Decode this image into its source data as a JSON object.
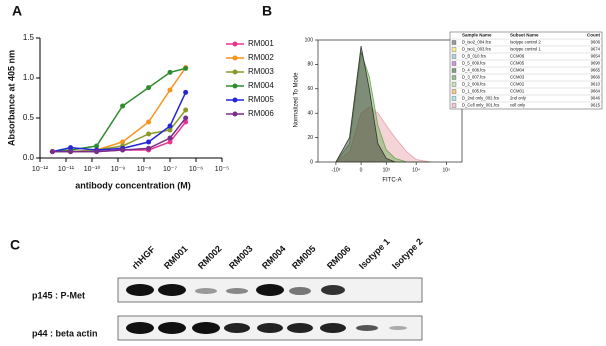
{
  "chart_data": [
    {
      "type": "line",
      "panel": "A",
      "ylabel": "Absorbance at 405 nm",
      "xlabel": "antibody concentration (M)",
      "log_x": true,
      "x": [
        3e-12,
        1.5e-11,
        1.5e-10,
        1.5e-09,
        1.5e-08,
        1e-07,
        4e-07
      ],
      "xlim": [
        1e-12,
        1e-05
      ],
      "xticks": [
        {
          "value": 1e-12,
          "label": "10⁻¹²"
        },
        {
          "value": 1e-11,
          "label": "10⁻¹¹"
        },
        {
          "value": 1e-10,
          "label": "10⁻¹⁰"
        },
        {
          "value": 1e-09,
          "label": "10⁻⁹"
        },
        {
          "value": 1e-08,
          "label": "10⁻⁸"
        },
        {
          "value": 1e-07,
          "label": "10⁻⁷"
        },
        {
          "value": 1e-06,
          "label": "10⁻⁶"
        },
        {
          "value": 1e-05,
          "label": "10⁻⁵"
        }
      ],
      "ylim": [
        0,
        1.5
      ],
      "yticks": [
        {
          "value": 0,
          "label": "0.0"
        },
        0.5,
        {
          "value": 1,
          "label": "1.0"
        },
        1.5
      ],
      "series": [
        {
          "name": "RM001",
          "color": "#e8368f",
          "values": [
            0.08,
            0.08,
            0.08,
            0.1,
            0.1,
            0.2,
            0.45
          ]
        },
        {
          "name": "RM002",
          "color": "#f7931e",
          "values": [
            0.08,
            0.08,
            0.1,
            0.2,
            0.45,
            0.85,
            1.13
          ]
        },
        {
          "name": "RM003",
          "color": "#8a9a2a",
          "values": [
            0.08,
            0.08,
            0.1,
            0.15,
            0.3,
            0.35,
            0.6
          ]
        },
        {
          "name": "RM004",
          "color": "#2e8b2e",
          "values": [
            0.08,
            0.1,
            0.15,
            0.65,
            0.88,
            1.07,
            1.12
          ]
        },
        {
          "name": "RM005",
          "color": "#2626d9",
          "values": [
            0.08,
            0.13,
            0.1,
            0.12,
            0.2,
            0.4,
            0.82
          ]
        },
        {
          "name": "RM006",
          "color": "#7b2d8b",
          "values": [
            0.08,
            0.08,
            0.08,
            0.1,
            0.12,
            0.25,
            0.5
          ]
        }
      ]
    },
    {
      "type": "area",
      "panel": "B",
      "ylabel": "Normalized To Mode",
      "xlabel": "FITC-A",
      "x": [
        -1000,
        -300,
        0,
        200,
        500,
        1000,
        2000,
        5000,
        10000,
        30000
      ],
      "xlim": [
        -4000,
        330000
      ],
      "xticks": [
        {
          "value": -1000,
          "label": "-10³"
        },
        0,
        {
          "value": 1000,
          "label": "10³"
        },
        {
          "value": 10000,
          "label": "10⁴"
        },
        {
          "value": 100000,
          "label": "10⁵"
        }
      ],
      "ylim": [
        0,
        100
      ],
      "yticks": [
        0,
        20,
        40,
        60,
        80,
        100
      ],
      "series": [
        {
          "color": "#e8a0a8",
          "values": [
            0,
            8,
            40,
            45,
            40,
            30,
            20,
            8,
            2,
            0
          ]
        },
        {
          "color": "#6aa84f",
          "values": [
            0,
            15,
            90,
            70,
            30,
            10,
            3,
            0,
            0,
            0
          ]
        },
        {
          "color": "#333333",
          "values": [
            0,
            20,
            95,
            60,
            15,
            3,
            0,
            0,
            0,
            0
          ]
        }
      ],
      "table": {
        "header": [
          "Sample Name",
          "Subset Name",
          "Count"
        ],
        "rows": [
          {
            "color": "#555555",
            "cells": [
              "D_iso2_004.fcs",
              "Isotype control 2",
              9606
            ]
          },
          {
            "color": "#f2e14c",
            "cells": [
              "D_iso1_003.fcs",
              "Isotype control 1",
              9674
            ]
          },
          {
            "color": "#7fb7c9",
            "cells": [
              "D_B_010.fcs",
              "CCM06",
              9654
            ]
          },
          {
            "color": "#b04fc4",
            "cells": [
              "D_5_009.fcs",
              "CCM05",
              9690
            ]
          },
          {
            "color": "#2f5f2f",
            "cells": [
              "D_4_008.fcs",
              "CCM04",
              9665
            ]
          },
          {
            "color": "#4f9a3f",
            "cells": [
              "D_3_007.fcs",
              "CCM03",
              9666
            ]
          },
          {
            "color": "#a8d08d",
            "cells": [
              "D_2_006.fcs",
              "CCM02",
              9610
            ]
          },
          {
            "color": "#f0a040",
            "cells": [
              "D_1_005.fcs",
              "CCM01",
              9664
            ]
          },
          {
            "color": "#6fd0e0",
            "cells": [
              "D_2nd only_002.fcs",
              "2nd only",
              9646
            ]
          },
          {
            "color": "#f0a0b0",
            "cells": [
              "D_Cell only_001.fcs",
              "cell only",
              9615
            ]
          }
        ]
      }
    }
  ],
  "blot": {
    "panel": "C",
    "lanes": [
      "rhHGF",
      "RM001",
      "RM002",
      "RM003",
      "RM004",
      "RM005",
      "RM006",
      "Isotype 1",
      "Isotype 2"
    ],
    "rows": [
      "p145 : P-Met",
      "p44 : beta actin"
    ]
  }
}
